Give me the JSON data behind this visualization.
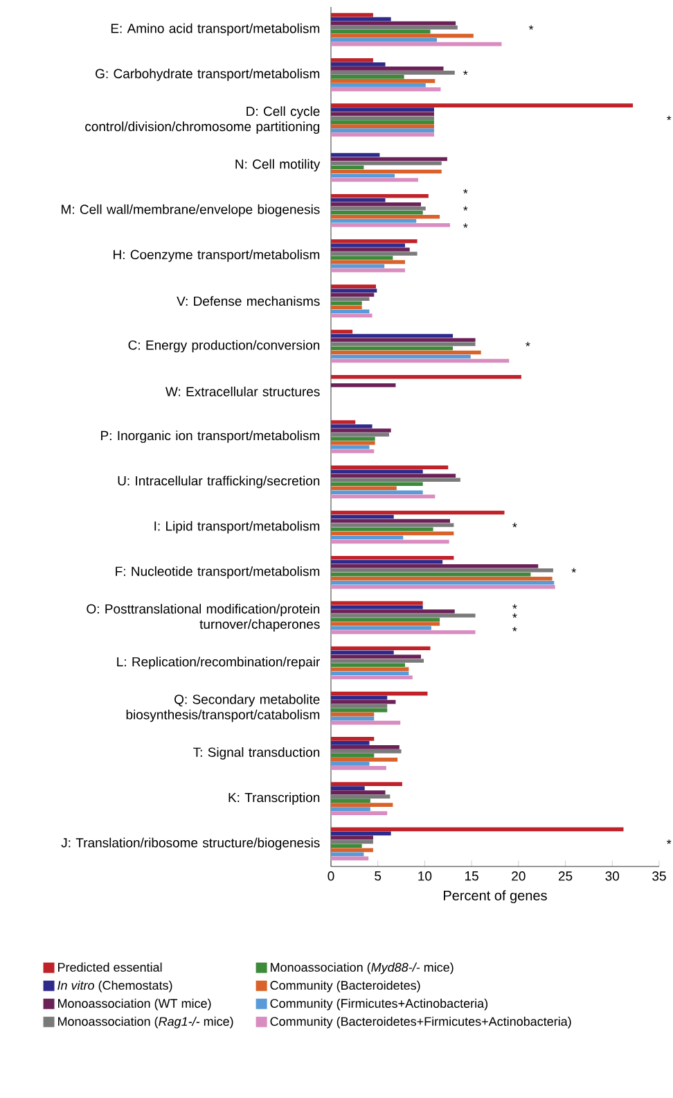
{
  "chart_data": {
    "type": "bar",
    "orientation": "horizontal",
    "xlabel": "Percent of genes",
    "xlim": [
      0,
      35
    ],
    "xticks": [
      0,
      5,
      10,
      15,
      20,
      25,
      30,
      35
    ],
    "legend": "bottom",
    "categories": [
      "E: Amino acid transport/metabolism",
      "G: Carbohydrate transport/metabolism",
      "D: Cell cycle control/division/chromosome partitioning",
      "N: Cell motility",
      "M: Cell wall/membrane/envelope biogenesis",
      "H: Coenzyme transport/metabolism",
      "V: Defense mechanisms",
      "C: Energy production/conversion",
      "W: Extracellular structures",
      "P: Inorganic ion transport/metabolism",
      "U: Intracellular trafficking/secretion",
      "I: Lipid transport/metabolism",
      "F: Nucleotide transport/metabolism",
      "O: Posttranslational modification/protein turnover/chaperones",
      "L: Replication/recombination/repair",
      "Q: Secondary metabolite biosynthesis/transport/catabolism",
      "T: Signal transduction",
      "K: Transcription",
      "J: Translation/ribosome structure/biogenesis"
    ],
    "series": [
      {
        "name": "Predicted essential",
        "color": "#c0222a",
        "values": [
          4.5,
          4.5,
          32.2,
          0,
          10.4,
          9.2,
          4.8,
          2.3,
          20.3,
          2.6,
          12.5,
          18.5,
          13.1,
          9.8,
          10.6,
          10.3,
          4.6,
          7.6,
          31.2
        ]
      },
      {
        "name": "*In vitro* (Chemostats)",
        "color": "#2e2a8c",
        "values": [
          6.4,
          5.8,
          11.0,
          5.2,
          5.8,
          7.9,
          4.9,
          13.0,
          0,
          4.4,
          9.8,
          6.7,
          11.9,
          9.8,
          6.7,
          6.0,
          4.1,
          3.6,
          6.4
        ]
      },
      {
        "name": "Monoassociation (WT mice)",
        "color": "#6b2157",
        "values": [
          13.3,
          12.0,
          11.0,
          12.4,
          9.6,
          8.4,
          4.6,
          15.4,
          6.9,
          6.4,
          13.3,
          12.7,
          22.1,
          13.2,
          9.6,
          6.9,
          7.3,
          5.8,
          4.5
        ]
      },
      {
        "name": "Monoassociation (*Rag1-/-* mice)",
        "color": "#7a7a7a",
        "values": [
          13.5,
          13.2,
          11.0,
          11.8,
          10.1,
          9.2,
          4.1,
          15.4,
          0,
          6.2,
          13.8,
          13.1,
          23.7,
          15.4,
          9.9,
          6.0,
          7.5,
          6.3,
          4.5
        ]
      },
      {
        "name": "Monoassociation (*Myd88-/-* mice)",
        "color": "#3d8a3a",
        "values": [
          10.6,
          7.8,
          11.0,
          3.5,
          9.8,
          6.6,
          3.3,
          13.0,
          0,
          4.7,
          9.8,
          10.9,
          21.3,
          11.6,
          7.9,
          6.0,
          4.6,
          4.2,
          3.3
        ]
      },
      {
        "name": "Community (Bacteroidetes)",
        "color": "#d9622b",
        "values": [
          15.2,
          11.1,
          11.0,
          11.8,
          11.6,
          7.9,
          3.3,
          16.0,
          0,
          4.7,
          7.0,
          13.1,
          23.6,
          11.6,
          8.3,
          4.6,
          7.1,
          6.6,
          4.5
        ]
      },
      {
        "name": "Community (Firmicutes+Actinobacteria)",
        "color": "#5a9ad8",
        "values": [
          11.3,
          10.1,
          11.0,
          6.8,
          9.1,
          5.7,
          4.1,
          14.9,
          0,
          4.1,
          9.8,
          7.7,
          23.8,
          10.7,
          8.3,
          4.6,
          4.1,
          4.2,
          3.5
        ]
      },
      {
        "name": "Community (Bacteroidetes+Firmicutes+Actinobacteria)",
        "color": "#d98cbf",
        "values": [
          18.2,
          11.7,
          11.0,
          9.3,
          12.7,
          7.9,
          4.4,
          19.0,
          0,
          4.6,
          11.1,
          12.6,
          23.9,
          15.4,
          8.7,
          7.4,
          5.9,
          6.0,
          4.0
        ]
      }
    ],
    "annotations": [
      "*",
      "*",
      "*",
      "*",
      "*",
      "*",
      "*",
      "*",
      "*",
      "*",
      "*",
      "*",
      "*"
    ]
  }
}
